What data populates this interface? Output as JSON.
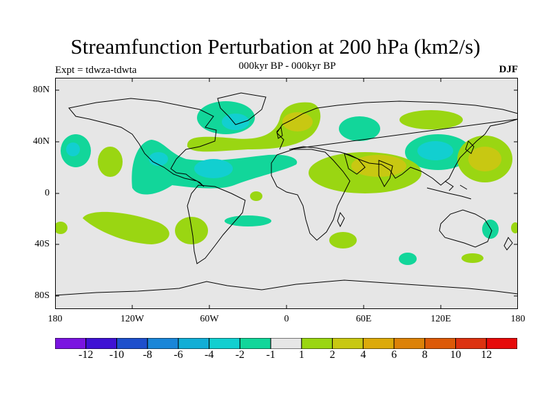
{
  "title": "Streamfunction Perturbation at 200 hPa (km2/s)",
  "subtitle": "000kyr BP - 000kyr BP",
  "left_string": "Expt = tdwza-tdwta",
  "right_string": "DJF",
  "y_ticks": [
    "80N",
    "40N",
    "0",
    "40S",
    "80S"
  ],
  "x_ticks": [
    "180",
    "120W",
    "60W",
    "0",
    "60E",
    "120E",
    "180"
  ],
  "colorbar": {
    "colors": [
      "#7a14e0",
      "#3f12d4",
      "#1e4fcc",
      "#1a86d8",
      "#12aed6",
      "#12cfd0",
      "#12d69a",
      "#e6e6e6",
      "#9ad612",
      "#c8c812",
      "#dcaa0a",
      "#dc8208",
      "#dc5a08",
      "#dc3210",
      "#e60a0a"
    ],
    "labels": [
      "-12",
      "-10",
      "-8",
      "-6",
      "-4",
      "-2",
      "-1",
      "1",
      "2",
      "4",
      "6",
      "8",
      "10",
      "12"
    ]
  },
  "map": {
    "background": "#e6e6e6",
    "coastline": "#000000"
  }
}
